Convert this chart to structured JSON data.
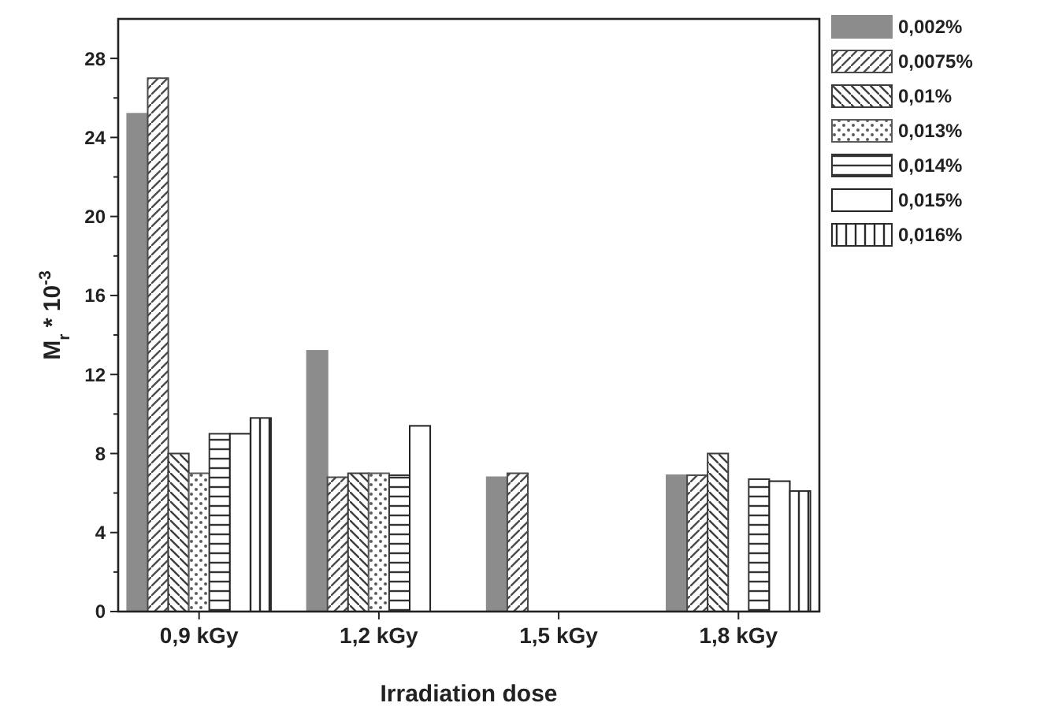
{
  "chart_data": {
    "type": "bar",
    "xlabel": "Irradiation dose",
    "ylabel": "M$_{r}$ * 10$^{-3}$",
    "categories": [
      "0,9 kGy",
      "1,2 kGy",
      "1,5 kGy",
      "1,8 kGy"
    ],
    "series": [
      {
        "name": "0,002%",
        "color": "#8c8c8c",
        "values": [
          25.2,
          13.2,
          6.8,
          6.9
        ]
      },
      {
        "name": "0,0075%",
        "color": "#4a4a4a",
        "values": [
          27,
          6.8,
          7,
          6.9
        ]
      },
      {
        "name": "0,01%",
        "color": "#3c3c3c",
        "values": [
          8,
          7,
          null,
          8
        ]
      },
      {
        "name": "0,013%",
        "color": "#5a5a5a",
        "values": [
          7,
          7,
          null,
          null
        ]
      },
      {
        "name": "0,014%",
        "color": "#333333",
        "values": [
          9,
          6.9,
          null,
          6.7
        ]
      },
      {
        "name": "0,015%",
        "color": "#222222",
        "values": [
          9,
          9.4,
          null,
          6.6
        ]
      },
      {
        "name": "0,016%",
        "color": "#2a2a2a",
        "values": [
          9.8,
          null,
          null,
          6.1
        ]
      }
    ],
    "ylim": [
      0,
      30
    ],
    "yticks": [
      0,
      4,
      8,
      12,
      16,
      20,
      24,
      28
    ],
    "grid": false,
    "legend": "top right"
  }
}
